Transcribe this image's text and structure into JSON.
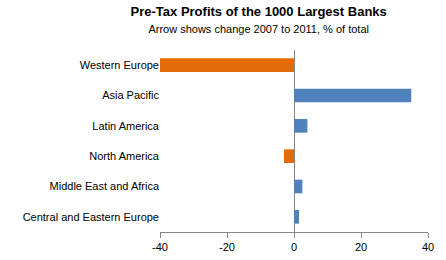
{
  "chart_data": {
    "type": "bar",
    "title": "Pre-Tax Profits of the 1000 Largest Banks",
    "subtitle": "Arrow shows change 2007 to 2011, % of total",
    "orientation": "horizontal",
    "categories": [
      "Western Europe",
      "Asia Pacific",
      "Latin America",
      "North America",
      "Middle East and Africa",
      "Central and Eastern Europe"
    ],
    "values": [
      -40,
      35,
      4,
      -3,
      2.5,
      1.5
    ],
    "colors": [
      "#e36c09",
      "#4f81bd",
      "#4f81bd",
      "#e36c09",
      "#4f81bd",
      "#4f81bd"
    ],
    "xlim": [
      -40,
      40
    ],
    "xticks": [
      -40,
      -20,
      0,
      20,
      40
    ],
    "grid": false
  }
}
